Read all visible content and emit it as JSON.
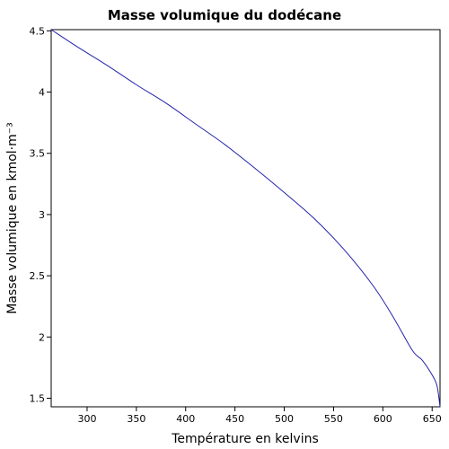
{
  "chart_data": {
    "type": "line",
    "title": "Masse volumique du dodécane",
    "xlabel": "Température en kelvins",
    "ylabel": "Masse volumique en kmol·m⁻³",
    "xlim": [
      263.6,
      658.0
    ],
    "ylim": [
      1.43,
      4.51
    ],
    "x_ticks": [
      {
        "value": 300,
        "label": "300"
      },
      {
        "value": 350,
        "label": "350"
      },
      {
        "value": 400,
        "label": "400"
      },
      {
        "value": 450,
        "label": "450"
      },
      {
        "value": 500,
        "label": "500"
      },
      {
        "value": 550,
        "label": "550"
      },
      {
        "value": 600,
        "label": "600"
      },
      {
        "value": 650,
        "label": "650"
      }
    ],
    "y_ticks": [
      {
        "value": 1.5,
        "label": "1.5"
      },
      {
        "value": 2,
        "label": "2"
      },
      {
        "value": 2.5,
        "label": "2.5"
      },
      {
        "value": 3,
        "label": "3"
      },
      {
        "value": 3.5,
        "label": "3.5"
      },
      {
        "value": 4,
        "label": "4"
      },
      {
        "value": 4.5,
        "label": "4.5"
      }
    ],
    "grid": false,
    "series": [
      {
        "color": "#2222aa",
        "x": [
          263.6,
          290,
          320,
          350,
          380,
          410,
          440,
          470,
          500,
          530,
          560,
          590,
          610,
          630,
          640,
          650,
          655,
          658
        ],
        "y": [
          4.51,
          4.37,
          4.22,
          4.06,
          3.91,
          3.74,
          3.57,
          3.38,
          3.18,
          2.97,
          2.72,
          2.42,
          2.17,
          1.89,
          1.81,
          1.69,
          1.6,
          1.43
        ]
      }
    ]
  }
}
